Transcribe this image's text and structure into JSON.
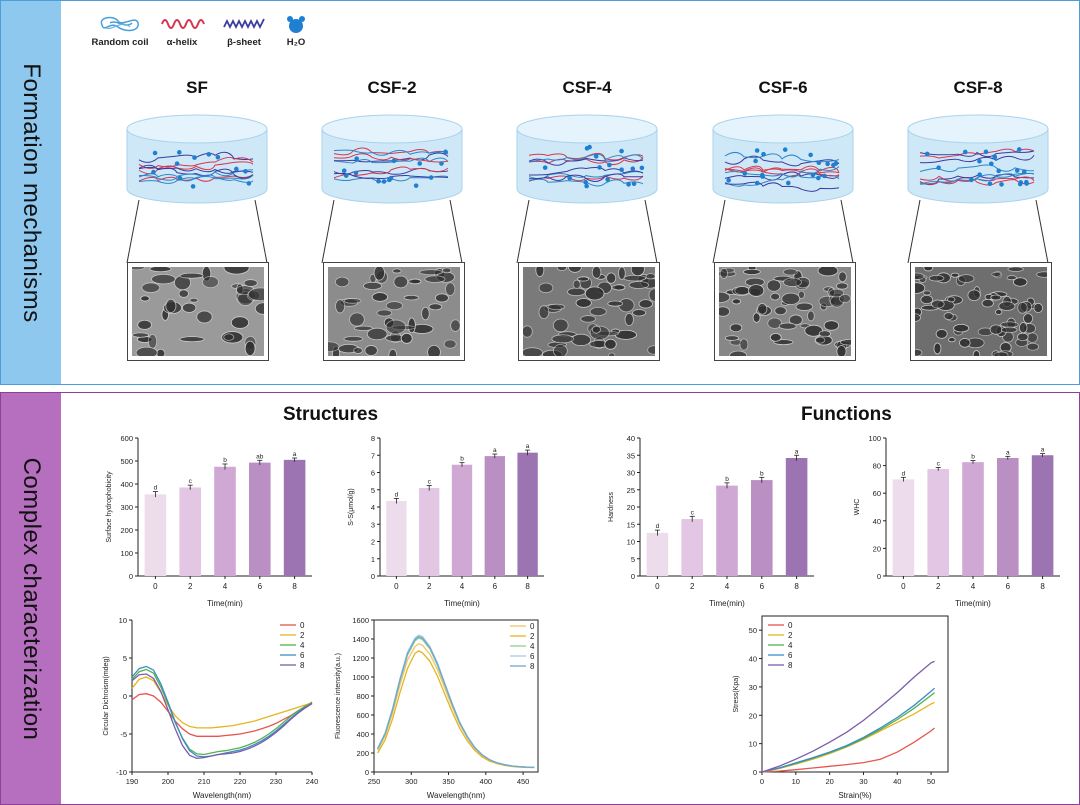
{
  "sidebar_top": {
    "label": "Formation mechanisms",
    "color": "#8fc8ee"
  },
  "sidebar_bottom": {
    "label": "Complex characterization",
    "color": "#b56fbe"
  },
  "legend": [
    {
      "label": "Random coil",
      "icon": "random-coil-icon"
    },
    {
      "label": "α-helix",
      "icon": "alpha-helix-icon"
    },
    {
      "label": "β-sheet",
      "icon": "beta-sheet-icon"
    },
    {
      "label": "H₂O",
      "icon": "water-molecule-icon"
    }
  ],
  "samples": [
    "SF",
    "CSF-2",
    "CSF-4",
    "CSF-6",
    "CSF-8"
  ],
  "sections": {
    "structures": "Structures",
    "functions": "Functions"
  },
  "charts": {
    "surface": {
      "type": "bar",
      "ylabel": "Surface hydrophobicity",
      "xlabel": "Time(min)",
      "categories": [
        "0",
        "2",
        "4",
        "6",
        "8"
      ],
      "values": [
        355,
        385,
        475,
        493,
        505
      ],
      "errors": [
        12,
        10,
        12,
        10,
        8
      ],
      "letters": [
        "d",
        "c",
        "b",
        "ab",
        "a"
      ],
      "ylim": [
        0,
        600
      ],
      "yticks": [
        0,
        100,
        200,
        300,
        400,
        500,
        600
      ]
    },
    "ssh": {
      "type": "bar",
      "ylabel": "S-S(μmol/g)",
      "xlabel": "Time(min)",
      "categories": [
        "0",
        "2",
        "4",
        "6",
        "8"
      ],
      "values": [
        4.35,
        5.1,
        6.45,
        6.95,
        7.15
      ],
      "errors": [
        0.15,
        0.15,
        0.12,
        0.12,
        0.15
      ],
      "letters": [
        "d",
        "c",
        "b",
        "a",
        "a"
      ],
      "ylim": [
        0,
        8
      ],
      "yticks": [
        0,
        1,
        2,
        3,
        4,
        5,
        6,
        7,
        8
      ]
    },
    "hardness": {
      "type": "bar",
      "ylabel": "Hardness",
      "xlabel": "Time(min)",
      "categories": [
        "0",
        "2",
        "4",
        "6",
        "8"
      ],
      "values": [
        12.5,
        16.5,
        26.2,
        27.8,
        34.2
      ],
      "errors": [
        0.8,
        0.8,
        0.8,
        0.8,
        0.8
      ],
      "letters": [
        "d",
        "c",
        "b",
        "b",
        "a"
      ],
      "ylim": [
        0,
        40
      ],
      "yticks": [
        0,
        5,
        10,
        15,
        20,
        25,
        30,
        35,
        40
      ]
    },
    "whc": {
      "type": "bar",
      "ylabel": "WHC",
      "xlabel": "Time(min)",
      "categories": [
        "0",
        "2",
        "4",
        "6",
        "8"
      ],
      "values": [
        70,
        77.5,
        82.5,
        85.5,
        87.5
      ],
      "errors": [
        1.5,
        1.2,
        1.2,
        1.2,
        1.2
      ],
      "letters": [
        "d",
        "c",
        "b",
        "a",
        "a"
      ],
      "ylim": [
        0,
        100
      ],
      "yticks": [
        0,
        20,
        40,
        60,
        80,
        100
      ]
    },
    "cd": {
      "type": "line",
      "ylabel": "Circular Dichroism(mdeg)",
      "xlabel": "Wavelength(nm)",
      "xlim": [
        190,
        240
      ],
      "ylim": [
        -10,
        10
      ],
      "xticks": [
        190,
        200,
        210,
        220,
        230,
        240
      ],
      "yticks": [
        -10,
        -5,
        0,
        5,
        10
      ],
      "x": [
        190,
        192,
        194,
        196,
        198,
        200,
        202,
        204,
        206,
        208,
        210,
        212,
        214,
        216,
        218,
        220,
        222,
        224,
        226,
        228,
        230,
        232,
        234,
        236,
        238,
        240
      ],
      "series": [
        {
          "name": "0",
          "color": "#e8554e",
          "values": [
            -0.5,
            0.2,
            0.3,
            0,
            -0.8,
            -2.0,
            -3.3,
            -4.3,
            -5.0,
            -5.3,
            -5.3,
            -5.3,
            -5.3,
            -5.2,
            -5.1,
            -5.0,
            -4.8,
            -4.6,
            -4.3,
            -4.0,
            -3.6,
            -3.1,
            -2.6,
            -2.0,
            -1.4,
            -0.8
          ]
        },
        {
          "name": "2",
          "color": "#e6b422",
          "values": [
            1.0,
            2.2,
            2.5,
            2.0,
            0.5,
            -1.2,
            -2.6,
            -3.5,
            -4.0,
            -4.2,
            -4.2,
            -4.2,
            -4.1,
            -4.0,
            -3.9,
            -3.7,
            -3.5,
            -3.3,
            -3.0,
            -2.7,
            -2.4,
            -2.1,
            -1.8,
            -1.5,
            -1.2,
            -0.9
          ]
        },
        {
          "name": "4",
          "color": "#55b052",
          "values": [
            2.2,
            3.2,
            3.5,
            3.0,
            1.2,
            -1.0,
            -3.5,
            -5.5,
            -7.0,
            -7.6,
            -7.7,
            -7.5,
            -7.3,
            -7.2,
            -7.0,
            -6.8,
            -6.5,
            -6.1,
            -5.6,
            -5.0,
            -4.3,
            -3.5,
            -2.7,
            -2.0,
            -1.4,
            -0.9
          ]
        },
        {
          "name": "6",
          "color": "#3a8dc4",
          "values": [
            2.5,
            3.6,
            3.9,
            3.4,
            1.6,
            -0.8,
            -3.4,
            -5.6,
            -7.2,
            -7.9,
            -8.0,
            -7.9,
            -7.7,
            -7.5,
            -7.3,
            -7.1,
            -6.8,
            -6.4,
            -5.9,
            -5.3,
            -4.6,
            -3.8,
            -3.0,
            -2.2,
            -1.5,
            -1.0
          ]
        },
        {
          "name": "8",
          "color": "#7b5ca8",
          "values": [
            2.0,
            2.8,
            2.9,
            2.3,
            0.6,
            -1.8,
            -4.3,
            -6.5,
            -7.8,
            -8.2,
            -8.1,
            -7.9,
            -7.7,
            -7.6,
            -7.5,
            -7.3,
            -7.0,
            -6.6,
            -6.1,
            -5.5,
            -4.8,
            -4.0,
            -3.1,
            -2.3,
            -1.6,
            -1.0
          ]
        }
      ]
    },
    "fluor": {
      "type": "line",
      "ylabel": "Fluorescence intensity(a.u.)",
      "xlabel": "Wavelength(nm)",
      "xlim": [
        250,
        470
      ],
      "ylim": [
        0,
        1600
      ],
      "xticks": [
        250,
        300,
        350,
        400,
        450
      ],
      "yticks": [
        0,
        200,
        400,
        600,
        800,
        1000,
        1200,
        1400,
        1600
      ],
      "x": [
        255,
        265,
        275,
        285,
        295,
        305,
        310,
        315,
        325,
        335,
        345,
        355,
        365,
        375,
        385,
        395,
        405,
        415,
        425,
        435,
        445,
        455,
        465
      ],
      "series": [
        {
          "name": "0",
          "color": "#f0c46a",
          "values": [
            230,
            380,
            620,
            920,
            1180,
            1320,
            1350,
            1335,
            1240,
            1080,
            880,
            680,
            500,
            360,
            250,
            175,
            125,
            95,
            75,
            62,
            55,
            50,
            48
          ]
        },
        {
          "name": "2",
          "color": "#e6b422",
          "values": [
            200,
            340,
            560,
            840,
            1090,
            1250,
            1275,
            1255,
            1165,
            1010,
            820,
            630,
            460,
            330,
            230,
            160,
            115,
            88,
            70,
            58,
            52,
            48,
            46
          ]
        },
        {
          "name": "4",
          "color": "#8fcf8a",
          "values": [
            240,
            400,
            650,
            960,
            1230,
            1380,
            1410,
            1395,
            1295,
            1125,
            915,
            705,
            515,
            370,
            258,
            180,
            128,
            97,
            77,
            63,
            56,
            51,
            48
          ]
        },
        {
          "name": "6",
          "color": "#a8c8e8",
          "values": [
            250,
            415,
            670,
            990,
            1260,
            1410,
            1440,
            1425,
            1320,
            1150,
            935,
            720,
            525,
            378,
            262,
            183,
            130,
            98,
            78,
            64,
            57,
            52,
            48
          ]
        },
        {
          "name": "8",
          "color": "#6fa8d0",
          "values": [
            245,
            405,
            660,
            975,
            1245,
            1395,
            1425,
            1410,
            1308,
            1138,
            925,
            712,
            520,
            374,
            260,
            181,
            129,
            97,
            77,
            63,
            56,
            51,
            48
          ]
        }
      ]
    },
    "stress": {
      "type": "line",
      "ylabel": "Stress(Kpa)",
      "xlabel": "Strain(%)",
      "xlim": [
        0,
        55
      ],
      "ylim": [
        0,
        55
      ],
      "xticks": [
        0,
        10,
        20,
        30,
        40,
        50
      ],
      "yticks": [
        0,
        10,
        20,
        30,
        40,
        50
      ],
      "x": [
        0,
        5,
        10,
        15,
        20,
        25,
        30,
        35,
        40,
        45,
        50,
        51
      ],
      "series": [
        {
          "name": "0",
          "color": "#e8554e",
          "values": [
            0,
            0.3,
            0.8,
            1.4,
            2.0,
            2.6,
            3.3,
            4.5,
            7.0,
            10.5,
            14.5,
            15.5
          ]
        },
        {
          "name": "2",
          "color": "#e6b422",
          "values": [
            0,
            1.2,
            2.8,
            4.5,
            6.5,
            8.8,
            11.5,
            14.5,
            17.5,
            20.5,
            24.0,
            24.5
          ]
        },
        {
          "name": "4",
          "color": "#55b052",
          "values": [
            0,
            1.3,
            3.0,
            4.8,
            6.8,
            9.0,
            11.8,
            15.0,
            18.5,
            22.5,
            27.0,
            28.0
          ]
        },
        {
          "name": "6",
          "color": "#3a8dc4",
          "values": [
            0,
            1.4,
            3.2,
            5.0,
            7.0,
            9.3,
            12.2,
            15.5,
            19.2,
            23.5,
            28.5,
            29.5
          ]
        },
        {
          "name": "8",
          "color": "#7b5ca8",
          "values": [
            0,
            2.0,
            4.5,
            7.3,
            10.5,
            14.0,
            18.2,
            23.0,
            28.0,
            33.5,
            38.5,
            39.0
          ]
        }
      ]
    }
  }
}
